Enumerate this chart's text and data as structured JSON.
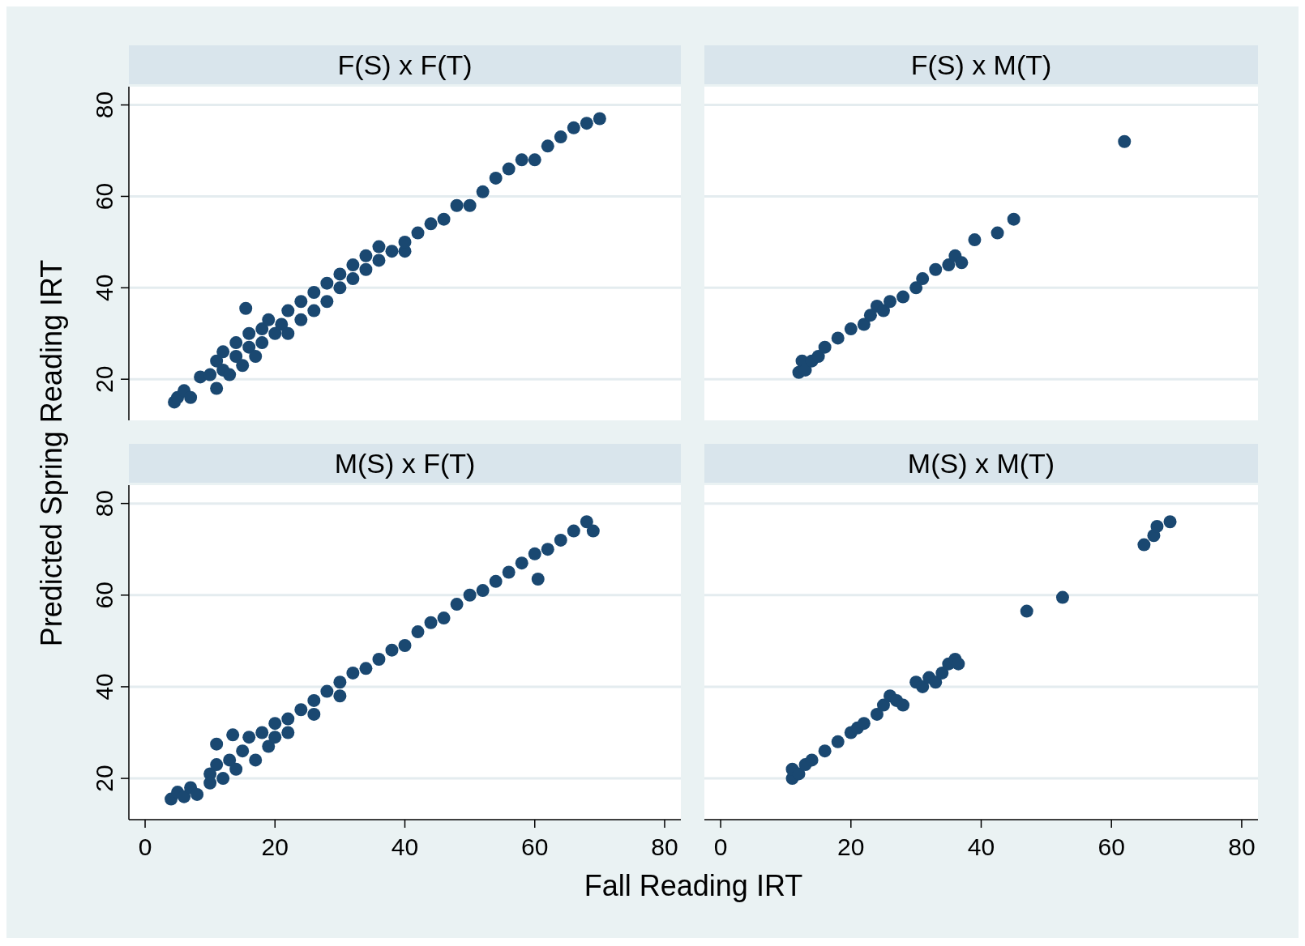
{
  "chart_data": [
    {
      "type": "scatter",
      "title": "F(S) x F(T)",
      "ylabel": "Predicted Spring Reading IRT",
      "xlim": [
        -2.5,
        82.5
      ],
      "ylim": [
        11,
        84
      ],
      "yticks": [
        20,
        40,
        60,
        80
      ],
      "grid": "y",
      "marker": "circle",
      "tick_labels": "y",
      "series": [
        {
          "color": "#1a4871",
          "x": [
            4.5,
            5,
            6,
            7,
            8.5,
            10,
            11,
            11,
            12,
            12,
            13,
            14,
            14,
            15,
            15.5,
            16,
            16,
            17,
            18,
            18,
            19,
            20,
            21,
            22,
            22,
            24,
            24,
            26,
            26,
            28,
            28,
            30,
            30,
            32,
            32,
            34,
            34,
            36,
            36,
            38,
            40,
            40,
            42,
            44,
            46,
            48,
            50,
            52,
            54,
            56,
            58,
            60,
            62,
            64,
            66,
            68,
            70
          ],
          "values": [
            15,
            16,
            17.5,
            16,
            20.5,
            21,
            18,
            24,
            22,
            26,
            21,
            25,
            28,
            23,
            35.5,
            27,
            30,
            25,
            31,
            28,
            33,
            30,
            32,
            30,
            35,
            33,
            37,
            35,
            39,
            37,
            41,
            40,
            43,
            42,
            45,
            44,
            47,
            46,
            49,
            48,
            48,
            50,
            52,
            54,
            55,
            58,
            58,
            61,
            64,
            66,
            68,
            68,
            71,
            73,
            75,
            76,
            77
          ]
        }
      ]
    },
    {
      "type": "scatter",
      "title": "F(S) x M(T)",
      "xlim": [
        -2.5,
        82.5
      ],
      "ylim": [
        11,
        84
      ],
      "yticks": [
        20,
        40,
        60,
        80
      ],
      "grid": "y",
      "marker": "circle",
      "tick_labels": false,
      "series": [
        {
          "color": "#1a4871",
          "x": [
            12,
            12.5,
            13,
            14,
            15,
            16,
            18,
            20,
            22,
            23,
            24,
            25,
            26,
            28,
            30,
            31,
            33,
            35,
            36,
            37,
            39,
            42.5,
            45,
            62
          ],
          "values": [
            21.5,
            24,
            22,
            24,
            25,
            27,
            29,
            31,
            32,
            34,
            36,
            35,
            37,
            38,
            40,
            42,
            44,
            45,
            47,
            45.5,
            50.5,
            52,
            55,
            72
          ]
        }
      ]
    },
    {
      "type": "scatter",
      "title": "M(S) x F(T)",
      "xlabel": "Fall Reading IRT",
      "xlim": [
        -2.5,
        82.5
      ],
      "ylim": [
        11,
        84
      ],
      "xticks": [
        0,
        20,
        40,
        60,
        80
      ],
      "yticks": [
        20,
        40,
        60,
        80
      ],
      "grid": "y",
      "marker": "circle",
      "series": [
        {
          "color": "#1a4871",
          "x": [
            4,
            5,
            6,
            7,
            8,
            10,
            10,
            11,
            11,
            12,
            13,
            13.5,
            14,
            15,
            16,
            17,
            18,
            19,
            20,
            20,
            22,
            22,
            24,
            26,
            26,
            28,
            30,
            30,
            32,
            34,
            36,
            38,
            40,
            42,
            44,
            46,
            48,
            50,
            52,
            54,
            56,
            58,
            60,
            60.5,
            62,
            64,
            66,
            68,
            69
          ],
          "values": [
            15.5,
            17,
            16,
            18,
            16.5,
            21,
            19,
            23,
            27.5,
            20,
            24,
            29.5,
            22,
            26,
            29,
            24,
            30,
            27,
            32,
            29,
            33,
            30,
            35,
            37,
            34,
            39,
            41,
            38,
            43,
            44,
            46,
            48,
            49,
            52,
            54,
            55,
            58,
            60,
            61,
            63,
            65,
            67,
            69,
            63.5,
            70,
            72,
            74,
            76,
            74
          ]
        }
      ]
    },
    {
      "type": "scatter",
      "title": "M(S) x M(T)",
      "xlim": [
        -2.5,
        82.5
      ],
      "ylim": [
        11,
        84
      ],
      "xticks": [
        0,
        20,
        40,
        60,
        80
      ],
      "yticks": [
        20,
        40,
        60,
        80
      ],
      "grid": "y",
      "marker": "circle",
      "tick_labels": "x",
      "series": [
        {
          "color": "#1a4871",
          "x": [
            11,
            11,
            12,
            13,
            14,
            16,
            18,
            20,
            21,
            22,
            24,
            25,
            26,
            27,
            28,
            30,
            31,
            32,
            33,
            34,
            35,
            36,
            36.5,
            47,
            52.5,
            65,
            66.5,
            67,
            69
          ],
          "values": [
            20,
            22,
            21,
            23,
            24,
            26,
            28,
            30,
            31,
            32,
            34,
            36,
            38,
            37,
            36,
            41,
            40,
            42,
            41,
            43,
            45,
            46,
            45,
            56.5,
            59.5,
            71,
            73,
            75,
            76
          ]
        }
      ]
    }
  ]
}
